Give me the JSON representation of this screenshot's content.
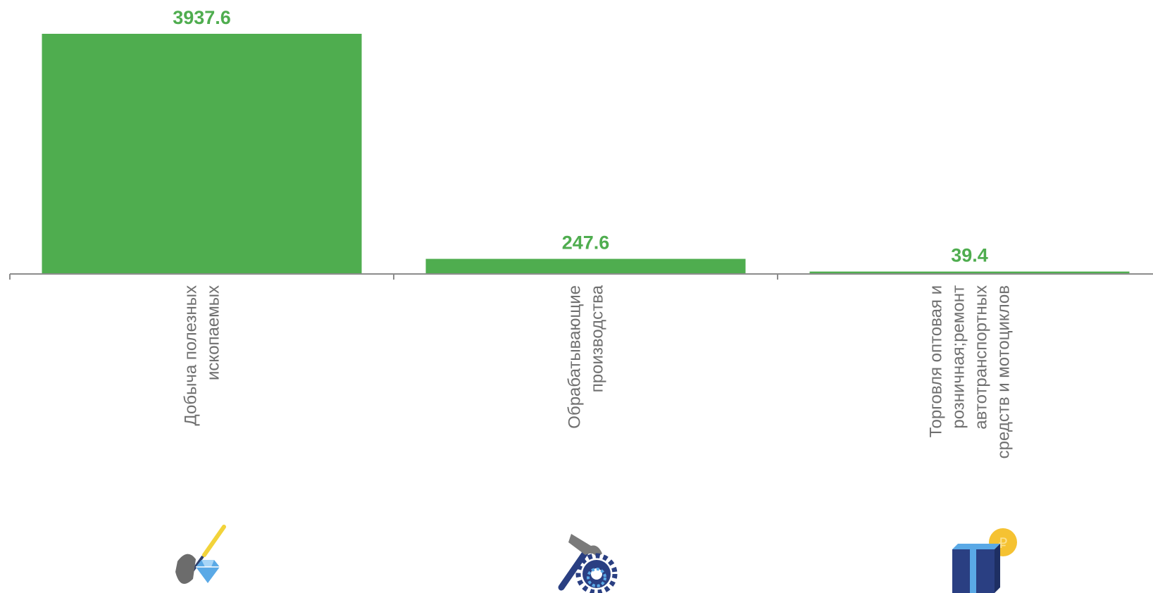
{
  "chart_data": {
    "type": "bar",
    "categories": [
      [
        "Добыча полезных",
        "ископаемых"
      ],
      [
        "Обрабатывающие",
        "производства"
      ],
      [
        "Торговля оптовая и",
        "розничная;ремонт",
        "автотранспортных",
        "средств и мотоциклов"
      ]
    ],
    "values": [
      3937.6,
      247.6,
      39.4
    ],
    "value_labels": [
      "3937.6",
      "247.6",
      "39.4"
    ],
    "ylim": [
      0,
      3937.6
    ],
    "grid": false,
    "legend": "none"
  },
  "colors": {
    "bar": "#4fad4f",
    "value_label": "#4fad4f",
    "axis": "#8c8c8c",
    "category_label": "#6f6f6f"
  },
  "icons": [
    "shovel-diamond-icon",
    "hammer-gear-icon",
    "gift-box-coin-icon"
  ]
}
